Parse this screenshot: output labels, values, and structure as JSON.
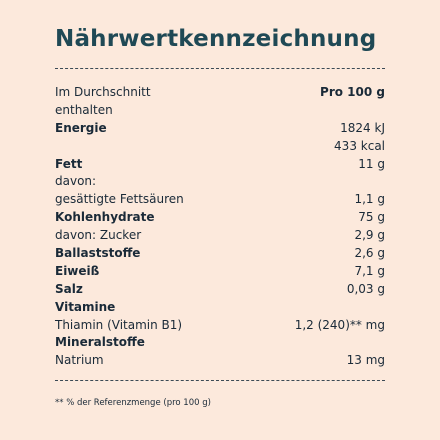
{
  "title": "Nährwertkennzeichnung",
  "header": {
    "label_line1": "Im Durchschnitt",
    "label_line2": "enthalten",
    "column": "Pro 100 g"
  },
  "rows": {
    "energie": {
      "label": "Energie",
      "kj": "1824 kJ",
      "kcal": "433 kcal"
    },
    "fett": {
      "label": "Fett",
      "value": "11 g"
    },
    "davon": {
      "label": "davon:"
    },
    "fettsaeuren": {
      "label": "gesättigte Fettsäuren",
      "value": "1,1 g"
    },
    "kohlenhydrate": {
      "label": "Kohlenhydrate",
      "value": "75 g"
    },
    "zucker": {
      "label": "davon: Zucker",
      "value": "2,9 g"
    },
    "ballaststoffe": {
      "label": "Ballaststoffe",
      "value": "2,6 g"
    },
    "eiweiss": {
      "label": "Eiweiß",
      "value": "7,1 g"
    },
    "salz": {
      "label": "Salz",
      "value": "0,03 g"
    },
    "vitamine": {
      "label": "Vitamine"
    },
    "thiamin": {
      "label": "Thiamin (Vitamin B1)",
      "value": "1,2 (240)** mg"
    },
    "mineralstoffe": {
      "label": "Mineralstoffe"
    },
    "natrium": {
      "label": "Natrium",
      "value": "13 mg"
    }
  },
  "footnote": "** % der Referenzmenge (pro 100 g)",
  "colors": {
    "background": "#fce9dc",
    "title": "#1f4955",
    "text": "#1a2a38"
  }
}
